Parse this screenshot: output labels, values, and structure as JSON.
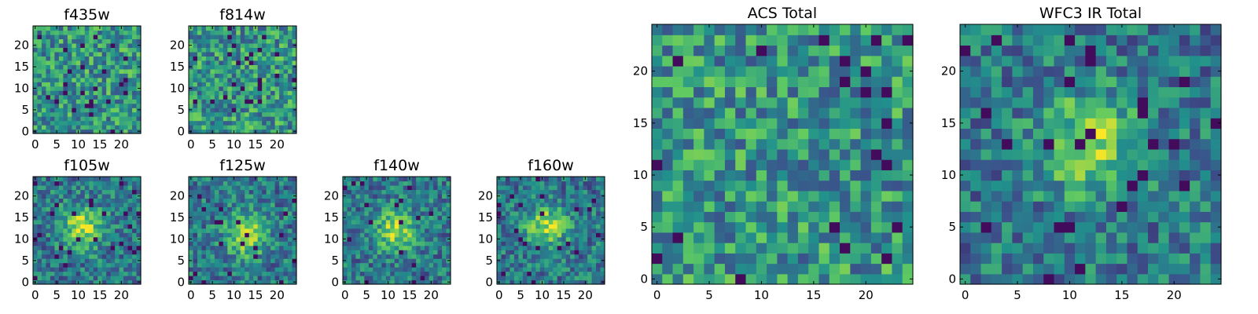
{
  "figure": {
    "colors": {
      "colormap": [
        "#440154",
        "#3b528b",
        "#21918c",
        "#5ec962",
        "#fde725"
      ],
      "frame": "#000000",
      "background": "#ffffff"
    }
  },
  "chart_data": [
    {
      "type": "heatmap",
      "title": "f435w",
      "xlabel": "",
      "ylabel": "",
      "xlim": [
        -0.5,
        24.5
      ],
      "ylim": [
        -0.5,
        24.5
      ],
      "xticks": [
        0,
        5,
        10,
        15,
        20
      ],
      "yticks": [
        0,
        5,
        10,
        15,
        20
      ],
      "grid": false,
      "origin": "lower",
      "colormap": "viridis",
      "resolution": [
        25,
        25
      ],
      "seed": 101,
      "peak": null
    },
    {
      "type": "heatmap",
      "title": "f814w",
      "xlabel": "",
      "ylabel": "",
      "xlim": [
        -0.5,
        24.5
      ],
      "ylim": [
        -0.5,
        24.5
      ],
      "xticks": [
        0,
        5,
        10,
        15,
        20
      ],
      "yticks": [
        0,
        5,
        10,
        15,
        20
      ],
      "grid": false,
      "origin": "lower",
      "colormap": "viridis",
      "resolution": [
        25,
        25
      ],
      "seed": 202,
      "peak": null
    },
    {
      "type": "heatmap",
      "title": "f105w",
      "xlabel": "",
      "ylabel": "",
      "xlim": [
        -0.5,
        24.5
      ],
      "ylim": [
        -0.5,
        24.5
      ],
      "xticks": [
        0,
        5,
        10,
        15,
        20
      ],
      "yticks": [
        0,
        5,
        10,
        15,
        20
      ],
      "grid": false,
      "origin": "lower",
      "colormap": "viridis",
      "resolution": [
        25,
        25
      ],
      "seed": 303,
      "peak": [
        11,
        13
      ]
    },
    {
      "type": "heatmap",
      "title": "f125w",
      "xlabel": "",
      "ylabel": "",
      "xlim": [
        -0.5,
        24.5
      ],
      "ylim": [
        -0.5,
        24.5
      ],
      "xticks": [
        0,
        5,
        10,
        15,
        20
      ],
      "yticks": [
        0,
        5,
        10,
        15,
        20
      ],
      "grid": false,
      "origin": "lower",
      "colormap": "viridis",
      "resolution": [
        25,
        25
      ],
      "seed": 404,
      "peak": [
        13,
        11
      ]
    },
    {
      "type": "heatmap",
      "title": "f140w",
      "xlabel": "",
      "ylabel": "",
      "xlim": [
        -0.5,
        24.5
      ],
      "ylim": [
        -0.5,
        24.5
      ],
      "xticks": [
        0,
        5,
        10,
        15,
        20
      ],
      "yticks": [
        0,
        5,
        10,
        15,
        20
      ],
      "grid": false,
      "origin": "lower",
      "colormap": "viridis",
      "resolution": [
        25,
        25
      ],
      "seed": 505,
      "peak": [
        12,
        12
      ]
    },
    {
      "type": "heatmap",
      "title": "f160w",
      "xlabel": "",
      "ylabel": "",
      "xlim": [
        -0.5,
        24.5
      ],
      "ylim": [
        -0.5,
        24.5
      ],
      "xticks": [
        0,
        5,
        10,
        15,
        20
      ],
      "yticks": [
        0,
        5,
        10,
        15,
        20
      ],
      "grid": false,
      "origin": "lower",
      "colormap": "viridis",
      "resolution": [
        25,
        25
      ],
      "seed": 606,
      "peak": [
        11,
        13
      ]
    },
    {
      "type": "heatmap",
      "title": "ACS Total",
      "xlabel": "",
      "ylabel": "",
      "xlim": [
        -0.5,
        24.5
      ],
      "ylim": [
        -0.5,
        24.5
      ],
      "xticks": [
        0,
        5,
        10,
        15,
        20
      ],
      "yticks": [
        0,
        5,
        10,
        15,
        20
      ],
      "grid": false,
      "origin": "lower",
      "colormap": "viridis",
      "resolution": [
        25,
        25
      ],
      "seed": 707,
      "peak": null
    },
    {
      "type": "heatmap",
      "title": "WFC3 IR Total",
      "xlabel": "",
      "ylabel": "",
      "xlim": [
        -0.5,
        24.5
      ],
      "ylim": [
        -0.5,
        24.5
      ],
      "xticks": [
        0,
        5,
        10,
        15,
        20
      ],
      "yticks": [
        0,
        5,
        10,
        15,
        20
      ],
      "grid": false,
      "origin": "lower",
      "colormap": "viridis",
      "resolution": [
        25,
        25
      ],
      "seed": 808,
      "peak": [
        12,
        13
      ]
    }
  ]
}
